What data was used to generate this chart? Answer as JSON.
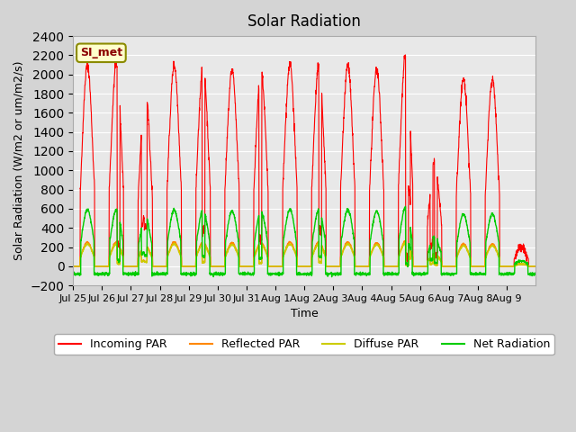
{
  "title": "Solar Radiation",
  "xlabel": "Time",
  "ylabel": "Solar Radiation (W/m2 or um/m2/s)",
  "ylim": [
    -200,
    2400
  ],
  "yticks": [
    -200,
    0,
    200,
    400,
    600,
    800,
    1000,
    1200,
    1400,
    1600,
    1800,
    2000,
    2200,
    2400
  ],
  "annotation": "SI_met",
  "colors": {
    "incoming": "#ff0000",
    "reflected": "#ff8800",
    "diffuse": "#cccc00",
    "net": "#00cc00"
  },
  "legend_labels": [
    "Incoming PAR",
    "Reflected PAR",
    "Diffuse PAR",
    "Net Radiation"
  ],
  "x_tick_labels": [
    "Jul 25",
    "Jul 26",
    "Jul 27",
    "Jul 28",
    "Jul 29",
    "Jul 30",
    "Jul 31",
    "Aug 1",
    "Aug 2",
    "Aug 3",
    "Aug 4",
    "Aug 5",
    "Aug 6",
    "Aug 7",
    "Aug 8",
    "Aug 9"
  ],
  "n_days": 16,
  "points_per_day": 144
}
